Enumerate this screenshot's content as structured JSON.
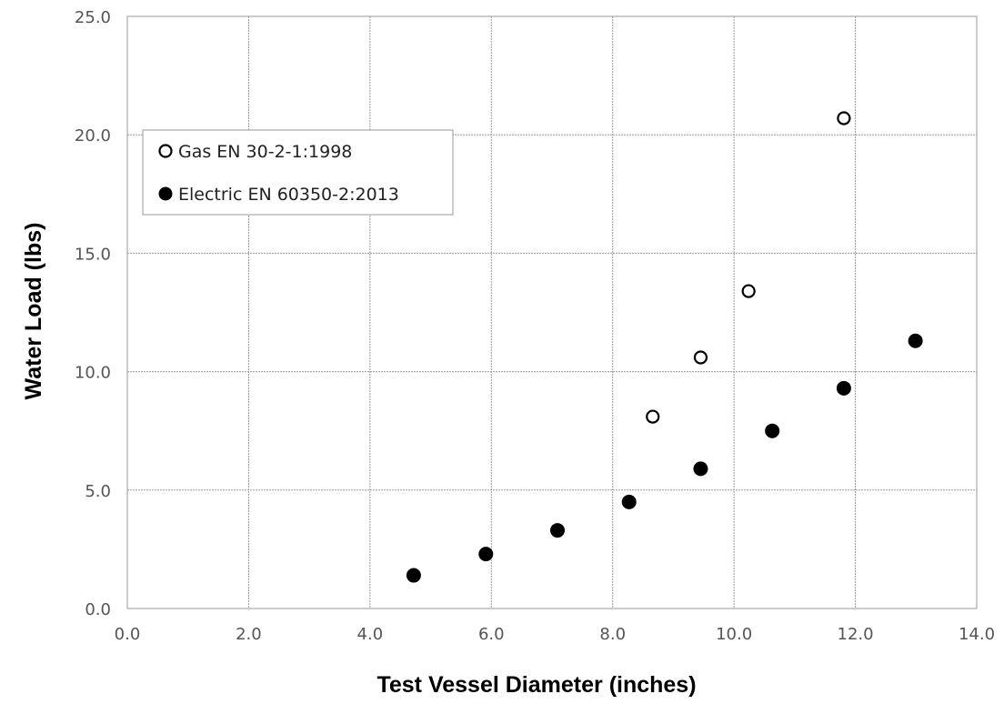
{
  "chart_data": {
    "type": "scatter",
    "title": "",
    "xlabel": "Test Vessel Diameter (inches)",
    "ylabel": "Water Load (lbs)",
    "xlim": [
      0,
      14
    ],
    "ylim": [
      0,
      25
    ],
    "xticks": [
      "0.0",
      "2.0",
      "4.0",
      "6.0",
      "8.0",
      "10.0",
      "12.0",
      "14.0"
    ],
    "yticks": [
      "0.0",
      "5.0",
      "10.0",
      "15.0",
      "20.0",
      "25.0"
    ],
    "grid": true,
    "legend_position": "top-left",
    "series": [
      {
        "name": "Gas EN 30-2-1:1998",
        "marker": "open-circle",
        "color": "#000000",
        "x": [
          8.66,
          9.45,
          10.24,
          11.81
        ],
        "y": [
          8.1,
          10.6,
          13.4,
          20.7
        ]
      },
      {
        "name": "Electric EN 60350-2:2013",
        "marker": "filled-circle",
        "color": "#000000",
        "x": [
          4.72,
          5.91,
          7.09,
          8.27,
          9.45,
          10.63,
          11.81,
          12.99
        ],
        "y": [
          1.4,
          2.3,
          3.3,
          4.5,
          5.9,
          7.5,
          9.3,
          11.3
        ]
      }
    ]
  }
}
